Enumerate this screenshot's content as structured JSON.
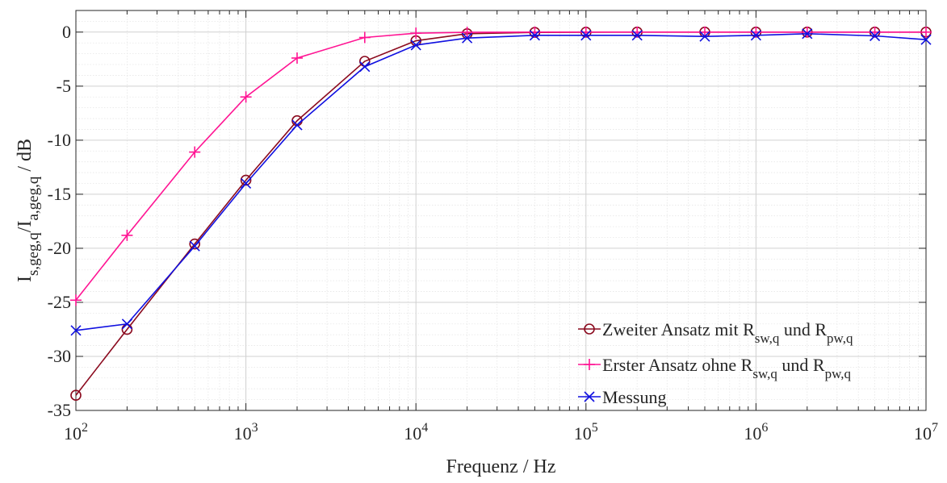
{
  "chart_data": {
    "type": "line",
    "x_scale": "log",
    "xlabel": "Frequenz / Hz",
    "ylabel": {
      "parts": [
        "I",
        "s,geg,q",
        "/I",
        "a,geg,q",
        " / dB"
      ]
    },
    "xlim": [
      100,
      10000000
    ],
    "ylim": [
      -35,
      2
    ],
    "x_ticks": [
      100,
      1000,
      10000,
      100000,
      1000000,
      10000000
    ],
    "x_tick_labels": [
      {
        "base": "10",
        "exp": "2"
      },
      {
        "base": "10",
        "exp": "3"
      },
      {
        "base": "10",
        "exp": "4"
      },
      {
        "base": "10",
        "exp": "5"
      },
      {
        "base": "10",
        "exp": "6"
      },
      {
        "base": "10",
        "exp": "7"
      }
    ],
    "y_ticks": [
      0,
      -5,
      -10,
      -15,
      -20,
      -25,
      -30,
      -35
    ],
    "y_tick_labels": [
      "0",
      "-5",
      "-10",
      "-15",
      "-20",
      "-25",
      "-30",
      "-35"
    ],
    "grid": true,
    "minor_grid": true,
    "legend_position": "bottom-right",
    "x": [
      100,
      200,
      500,
      1000,
      2000,
      5000,
      10000,
      20000,
      50000,
      100000,
      200000,
      500000,
      1000000,
      2000000,
      5000000,
      10000000
    ],
    "series": [
      {
        "name": "Zweiter Ansatz mit R_sw,q und R_pw,q",
        "legend_parts": [
          "Zweiter Ansatz mit R",
          "sw,q",
          " und R",
          "pw,q"
        ],
        "color": "#8B0A1E",
        "marker": "circle",
        "values": [
          -33.6,
          -27.5,
          -19.6,
          -13.7,
          -8.2,
          -2.7,
          -0.8,
          -0.15,
          -0.03,
          -0.01,
          0,
          0,
          0,
          0,
          0,
          0
        ]
      },
      {
        "name": "Erster Ansatz ohne R_sw,q und R_pw,q",
        "legend_parts": [
          "Erster Ansatz ohne R",
          "sw,q",
          " und R",
          "pw,q"
        ],
        "color": "#FF1493",
        "marker": "plus",
        "values": [
          -24.8,
          -18.8,
          -11.1,
          -6.0,
          -2.4,
          -0.5,
          -0.1,
          -0.02,
          0,
          0,
          0,
          0,
          0,
          0,
          0,
          0
        ]
      },
      {
        "name": "Messung",
        "legend_parts": [
          "Messung"
        ],
        "color": "#1010E0",
        "marker": "x",
        "values": [
          -27.6,
          -27.0,
          -19.8,
          -14.0,
          -8.6,
          -3.2,
          -1.2,
          -0.55,
          -0.3,
          -0.3,
          -0.3,
          -0.4,
          -0.3,
          -0.15,
          -0.35,
          -0.7
        ]
      }
    ]
  }
}
